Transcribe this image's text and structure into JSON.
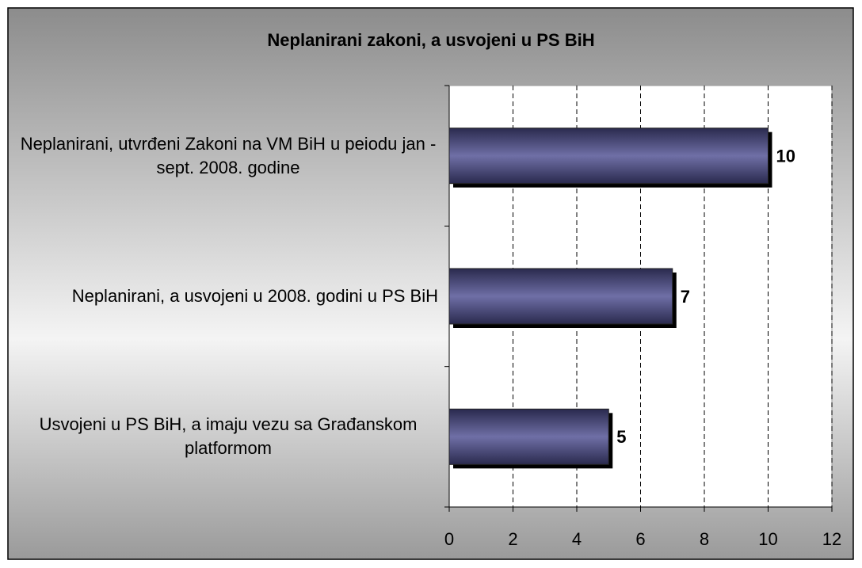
{
  "chart_data": {
    "type": "barh",
    "title": "Neplanirani zakoni, a usvojeni u PS BiH",
    "categories": [
      "Neplanirani, utvrđeni Zakoni na VM BiH u peiodu jan - sept. 2008. godine",
      "Neplanirani, a usvojeni u 2008. godini u PS BiH",
      "Usvojeni u PS BiH, a imaju vezu sa Građanskom platformom"
    ],
    "values": [
      10,
      7,
      5
    ],
    "color": "#55558a",
    "xlim": [
      0,
      12
    ],
    "xticks": [
      0,
      2,
      4,
      6,
      8,
      10,
      12
    ],
    "grid": true
  }
}
